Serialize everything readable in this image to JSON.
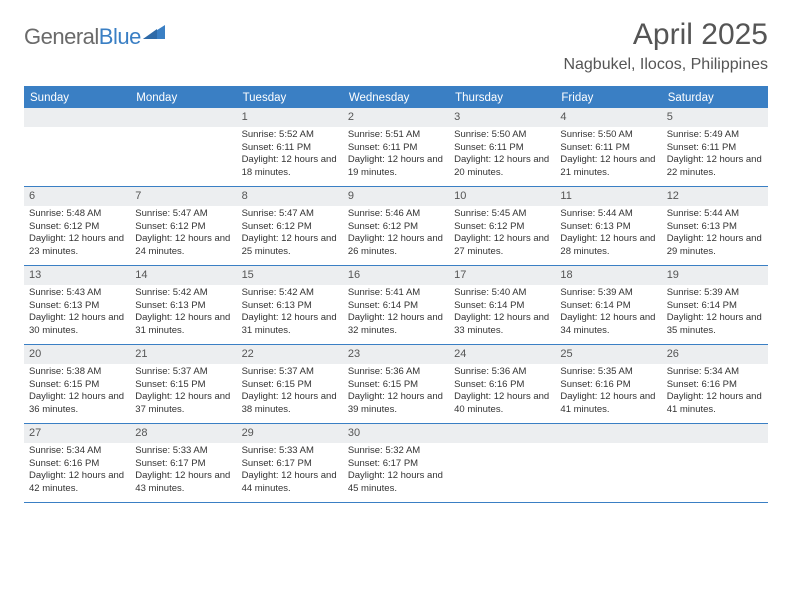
{
  "logo": {
    "word1": "General",
    "word2": "Blue"
  },
  "title": "April 2025",
  "location": "Nagbukel, Ilocos, Philippines",
  "weekday_bg": "#3a7fc4",
  "daynum_bg": "#eceef0",
  "border_color": "#3a7fc4",
  "text_color": "#333333",
  "header_text_color": "#555555",
  "weekdays": [
    "Sunday",
    "Monday",
    "Tuesday",
    "Wednesday",
    "Thursday",
    "Friday",
    "Saturday"
  ],
  "labels": {
    "sunrise": "Sunrise:",
    "sunset": "Sunset:",
    "daylight": "Daylight:"
  },
  "leading_blanks": 2,
  "days": [
    {
      "n": 1,
      "sunrise": "5:52 AM",
      "sunset": "6:11 PM",
      "daylight": "12 hours and 18 minutes."
    },
    {
      "n": 2,
      "sunrise": "5:51 AM",
      "sunset": "6:11 PM",
      "daylight": "12 hours and 19 minutes."
    },
    {
      "n": 3,
      "sunrise": "5:50 AM",
      "sunset": "6:11 PM",
      "daylight": "12 hours and 20 minutes."
    },
    {
      "n": 4,
      "sunrise": "5:50 AM",
      "sunset": "6:11 PM",
      "daylight": "12 hours and 21 minutes."
    },
    {
      "n": 5,
      "sunrise": "5:49 AM",
      "sunset": "6:11 PM",
      "daylight": "12 hours and 22 minutes."
    },
    {
      "n": 6,
      "sunrise": "5:48 AM",
      "sunset": "6:12 PM",
      "daylight": "12 hours and 23 minutes."
    },
    {
      "n": 7,
      "sunrise": "5:47 AM",
      "sunset": "6:12 PM",
      "daylight": "12 hours and 24 minutes."
    },
    {
      "n": 8,
      "sunrise": "5:47 AM",
      "sunset": "6:12 PM",
      "daylight": "12 hours and 25 minutes."
    },
    {
      "n": 9,
      "sunrise": "5:46 AM",
      "sunset": "6:12 PM",
      "daylight": "12 hours and 26 minutes."
    },
    {
      "n": 10,
      "sunrise": "5:45 AM",
      "sunset": "6:12 PM",
      "daylight": "12 hours and 27 minutes."
    },
    {
      "n": 11,
      "sunrise": "5:44 AM",
      "sunset": "6:13 PM",
      "daylight": "12 hours and 28 minutes."
    },
    {
      "n": 12,
      "sunrise": "5:44 AM",
      "sunset": "6:13 PM",
      "daylight": "12 hours and 29 minutes."
    },
    {
      "n": 13,
      "sunrise": "5:43 AM",
      "sunset": "6:13 PM",
      "daylight": "12 hours and 30 minutes."
    },
    {
      "n": 14,
      "sunrise": "5:42 AM",
      "sunset": "6:13 PM",
      "daylight": "12 hours and 31 minutes."
    },
    {
      "n": 15,
      "sunrise": "5:42 AM",
      "sunset": "6:13 PM",
      "daylight": "12 hours and 31 minutes."
    },
    {
      "n": 16,
      "sunrise": "5:41 AM",
      "sunset": "6:14 PM",
      "daylight": "12 hours and 32 minutes."
    },
    {
      "n": 17,
      "sunrise": "5:40 AM",
      "sunset": "6:14 PM",
      "daylight": "12 hours and 33 minutes."
    },
    {
      "n": 18,
      "sunrise": "5:39 AM",
      "sunset": "6:14 PM",
      "daylight": "12 hours and 34 minutes."
    },
    {
      "n": 19,
      "sunrise": "5:39 AM",
      "sunset": "6:14 PM",
      "daylight": "12 hours and 35 minutes."
    },
    {
      "n": 20,
      "sunrise": "5:38 AM",
      "sunset": "6:15 PM",
      "daylight": "12 hours and 36 minutes."
    },
    {
      "n": 21,
      "sunrise": "5:37 AM",
      "sunset": "6:15 PM",
      "daylight": "12 hours and 37 minutes."
    },
    {
      "n": 22,
      "sunrise": "5:37 AM",
      "sunset": "6:15 PM",
      "daylight": "12 hours and 38 minutes."
    },
    {
      "n": 23,
      "sunrise": "5:36 AM",
      "sunset": "6:15 PM",
      "daylight": "12 hours and 39 minutes."
    },
    {
      "n": 24,
      "sunrise": "5:36 AM",
      "sunset": "6:16 PM",
      "daylight": "12 hours and 40 minutes."
    },
    {
      "n": 25,
      "sunrise": "5:35 AM",
      "sunset": "6:16 PM",
      "daylight": "12 hours and 41 minutes."
    },
    {
      "n": 26,
      "sunrise": "5:34 AM",
      "sunset": "6:16 PM",
      "daylight": "12 hours and 41 minutes."
    },
    {
      "n": 27,
      "sunrise": "5:34 AM",
      "sunset": "6:16 PM",
      "daylight": "12 hours and 42 minutes."
    },
    {
      "n": 28,
      "sunrise": "5:33 AM",
      "sunset": "6:17 PM",
      "daylight": "12 hours and 43 minutes."
    },
    {
      "n": 29,
      "sunrise": "5:33 AM",
      "sunset": "6:17 PM",
      "daylight": "12 hours and 44 minutes."
    },
    {
      "n": 30,
      "sunrise": "5:32 AM",
      "sunset": "6:17 PM",
      "daylight": "12 hours and 45 minutes."
    }
  ]
}
